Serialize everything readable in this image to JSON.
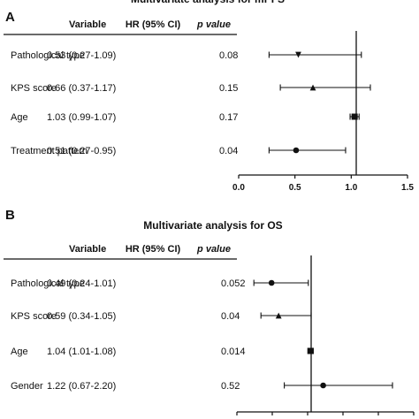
{
  "chart_data": [
    {
      "type": "forest",
      "panel_label": "A",
      "title": "Multivariate analysis for mPFS",
      "columns": {
        "variable": "Variable",
        "hr": "HR (95% CI)",
        "p": "p value"
      },
      "rows": [
        {
          "variable": "Pathological type",
          "hr_text": "0.53 (0.27-1.09)",
          "p_text": "0.08",
          "hr": 0.53,
          "lo": 0.27,
          "hi": 1.09,
          "marker": "triangle-down"
        },
        {
          "variable": "KPS score",
          "hr_text": "0.66 (0.37-1.17)",
          "p_text": "0.15",
          "hr": 0.66,
          "lo": 0.37,
          "hi": 1.17,
          "marker": "triangle-up"
        },
        {
          "variable": "Age",
          "hr_text": "1.03 (0.99-1.07)",
          "p_text": "0.17",
          "hr": 1.03,
          "lo": 0.99,
          "hi": 1.07,
          "marker": "square"
        },
        {
          "variable": "Treatment pattern",
          "hr_text": "0.51 (0.27-0.95)",
          "p_text": "0.04",
          "hr": 0.51,
          "lo": 0.27,
          "hi": 0.95,
          "marker": "circle"
        }
      ],
      "xlim": [
        0.0,
        1.5
      ],
      "xticks": [
        "0.0",
        "0.5",
        "1.0",
        "1.5"
      ],
      "reference_line": 1.0
    },
    {
      "type": "forest",
      "panel_label": "B",
      "title": "Multivariate analysis for OS",
      "columns": {
        "variable": "Variable",
        "hr": "HR (95% CI)",
        "p": "p value"
      },
      "rows": [
        {
          "variable": "Pathological type",
          "hr_text": "0.49 (0.24-1.01)",
          "p_text": "0.052",
          "hr": 0.49,
          "lo": 0.24,
          "hi": 1.01,
          "marker": "circle"
        },
        {
          "variable": "KPS score",
          "hr_text": "0.59 (0.34-1.05)",
          "p_text": "0.04",
          "hr": 0.59,
          "lo": 0.34,
          "hi": 1.05,
          "marker": "triangle-up"
        },
        {
          "variable": "Age",
          "hr_text": "1.04 (1.01-1.08)",
          "p_text": "0.014",
          "hr": 1.04,
          "lo": 1.01,
          "hi": 1.08,
          "marker": "square"
        },
        {
          "variable": "Gender",
          "hr_text": "1.22 (0.67-2.20)",
          "p_text": "0.52",
          "hr": 1.22,
          "lo": 0.67,
          "hi": 2.2,
          "marker": "circle"
        }
      ],
      "xlim": [
        0.0,
        2.5
      ]
    }
  ]
}
